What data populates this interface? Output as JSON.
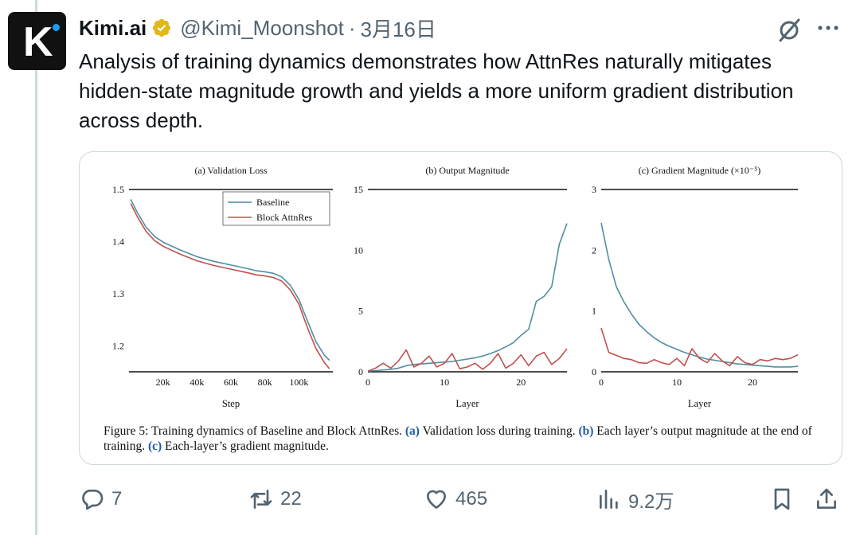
{
  "author": {
    "name": "Kimi.ai",
    "handle": "@Kimi_Moonshot",
    "date": "3月16日",
    "avatar_letter": "K"
  },
  "tweet": {
    "text": "Analysis of training dynamics demonstrates how AttnRes naturally mitigates hidden-state magnitude growth and yields a more uniform gradient distribution across depth."
  },
  "colors": {
    "baseline": "#4f8fa0",
    "block_attnres": "#c0504d",
    "icon_gray": "#536471",
    "verified_gold": "#e2b719"
  },
  "figure": {
    "caption_prefix": "Figure 5: Training dynamics of Baseline and Block AttnRes.",
    "caption_a_marker": "(a)",
    "caption_a": "Validation loss during training.",
    "caption_b_marker": "(b)",
    "caption_b": "Each layer’s output magnitude at the end of training.",
    "caption_c_marker": "(c)",
    "caption_c": "Each-layer’s gradient magnitude."
  },
  "chart_data": [
    {
      "type": "line",
      "title": "(a) Validation Loss",
      "xlabel": "Step",
      "ylabel": "",
      "xlim": [
        0,
        120000
      ],
      "ylim": [
        1.15,
        1.5
      ],
      "xticks": [
        20000,
        40000,
        60000,
        80000,
        100000
      ],
      "xtick_labels": [
        "20k",
        "40k",
        "60k",
        "80k",
        "100k"
      ],
      "yticks": [
        1.2,
        1.3,
        1.4,
        1.5
      ],
      "ytick_labels": [
        "1.2",
        "1.3",
        "1.4",
        "1.5"
      ],
      "legend": "top-right",
      "x": [
        1000,
        5000,
        10000,
        15000,
        20000,
        30000,
        40000,
        50000,
        60000,
        70000,
        75000,
        80000,
        85000,
        90000,
        95000,
        100000,
        105000,
        110000,
        115000,
        118000
      ],
      "series": [
        {
          "name": "Baseline",
          "values": [
            1.481,
            1.455,
            1.428,
            1.41,
            1.399,
            1.384,
            1.371,
            1.362,
            1.355,
            1.348,
            1.344,
            1.342,
            1.339,
            1.332,
            1.316,
            1.289,
            1.248,
            1.208,
            1.182,
            1.172
          ]
        },
        {
          "name": "Block AttnRes",
          "values": [
            1.473,
            1.447,
            1.42,
            1.402,
            1.391,
            1.376,
            1.363,
            1.354,
            1.347,
            1.34,
            1.336,
            1.334,
            1.331,
            1.324,
            1.307,
            1.28,
            1.235,
            1.195,
            1.168,
            1.156
          ]
        }
      ]
    },
    {
      "type": "line",
      "title": "(b) Output Magnitude",
      "xlabel": "Layer",
      "ylabel": "",
      "xlim": [
        0,
        26
      ],
      "ylim": [
        0,
        15
      ],
      "xticks": [
        0,
        10,
        20
      ],
      "yticks": [
        0,
        5,
        10,
        15
      ],
      "x": [
        0,
        1,
        2,
        3,
        4,
        5,
        6,
        7,
        8,
        9,
        10,
        11,
        12,
        13,
        14,
        15,
        16,
        17,
        18,
        19,
        20,
        21,
        22,
        23,
        24,
        25,
        26
      ],
      "series": [
        {
          "name": "Baseline",
          "values": [
            0.05,
            0.1,
            0.15,
            0.2,
            0.3,
            0.5,
            0.6,
            0.65,
            0.7,
            0.75,
            0.8,
            0.85,
            0.95,
            1.05,
            1.15,
            1.3,
            1.5,
            1.75,
            2.05,
            2.4,
            3.0,
            3.5,
            5.8,
            6.2,
            7.0,
            10.5,
            12.2
          ]
        },
        {
          "name": "Block AttnRes",
          "values": [
            0.05,
            0.3,
            0.7,
            0.3,
            0.9,
            1.8,
            0.4,
            0.7,
            1.3,
            0.4,
            0.7,
            1.5,
            0.25,
            0.4,
            0.7,
            0.2,
            0.7,
            1.5,
            0.3,
            0.7,
            1.4,
            0.5,
            1.3,
            1.6,
            0.6,
            1.1,
            1.9
          ]
        }
      ]
    },
    {
      "type": "line",
      "title": "(c) Gradient Magnitude (×10⁻⁵)",
      "xlabel": "Layer",
      "ylabel": "",
      "xlim": [
        0,
        26
      ],
      "ylim": [
        0,
        3
      ],
      "xticks": [
        0,
        10,
        20
      ],
      "yticks": [
        0,
        1,
        2,
        3
      ],
      "x": [
        0,
        1,
        2,
        3,
        4,
        5,
        6,
        7,
        8,
        9,
        10,
        11,
        12,
        13,
        14,
        15,
        16,
        17,
        18,
        19,
        20,
        21,
        22,
        23,
        24,
        25,
        26
      ],
      "series": [
        {
          "name": "Baseline",
          "values": [
            2.45,
            1.85,
            1.4,
            1.15,
            0.95,
            0.78,
            0.66,
            0.56,
            0.48,
            0.42,
            0.37,
            0.32,
            0.28,
            0.24,
            0.21,
            0.19,
            0.17,
            0.15,
            0.13,
            0.12,
            0.11,
            0.1,
            0.09,
            0.08,
            0.08,
            0.08,
            0.09
          ]
        },
        {
          "name": "Block AttnRes",
          "values": [
            0.72,
            0.32,
            0.27,
            0.22,
            0.2,
            0.15,
            0.14,
            0.2,
            0.15,
            0.12,
            0.22,
            0.1,
            0.38,
            0.22,
            0.15,
            0.3,
            0.18,
            0.1,
            0.25,
            0.15,
            0.12,
            0.2,
            0.18,
            0.22,
            0.2,
            0.22,
            0.28
          ]
        }
      ]
    }
  ],
  "actions": {
    "replies": "7",
    "reposts": "22",
    "likes": "465",
    "views": "9.2万"
  }
}
